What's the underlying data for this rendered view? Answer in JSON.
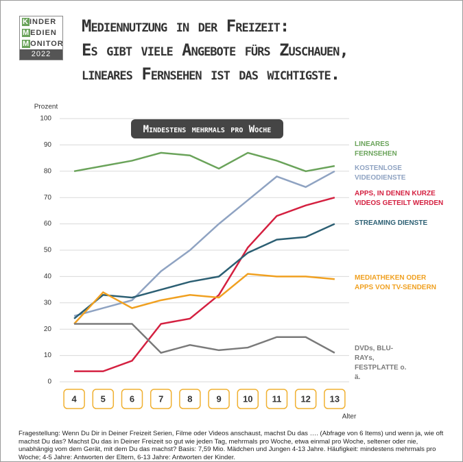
{
  "logo": {
    "line1": "KINDER",
    "line2": "MEDIEN",
    "line3": "MONITOR",
    "year": "2022"
  },
  "chart_data": {
    "type": "line",
    "title": [
      "Mediennutzung in der Freizeit:",
      "Es gibt viele Angebote fürs Zuschauen,",
      "lineares Fernsehen ist das wichtigste."
    ],
    "subtitle": "Mindestens mehrmals pro Woche",
    "y_label": "Prozent",
    "x_label": "Alter",
    "categories": [
      4,
      5,
      6,
      7,
      8,
      9,
      10,
      11,
      12,
      13
    ],
    "ylim": [
      0,
      100
    ],
    "yticks": [
      0,
      10,
      20,
      30,
      40,
      50,
      60,
      70,
      80,
      90,
      100
    ],
    "grid": true,
    "series": [
      {
        "name": "LINEARES FERNSEHEN",
        "color": "#6aa35a",
        "values": [
          80,
          82,
          84,
          87,
          86,
          81,
          87,
          84,
          80,
          82
        ]
      },
      {
        "name": "KOSTENLOSE VIDEODIENSTE",
        "color": "#8fa3c2",
        "values": [
          25,
          28,
          31,
          42,
          50,
          60,
          69,
          78,
          74,
          80
        ]
      },
      {
        "name": "APPS, IN DENEN KURZE VIDEOS GETEILT WERDEN",
        "color": "#d42040",
        "values": [
          4,
          4,
          8,
          22,
          24,
          33,
          51,
          63,
          67,
          70
        ]
      },
      {
        "name": "STREAMING DIENSTE",
        "color": "#2c5f73",
        "values": [
          24,
          33,
          32,
          35,
          38,
          40,
          49,
          54,
          55,
          60
        ]
      },
      {
        "name": "MEDIATHEKEN ODER APPS VON TV-SENDERN",
        "color": "#f0a020",
        "values": [
          22,
          34,
          28,
          31,
          33,
          32,
          41,
          40,
          40,
          39
        ]
      },
      {
        "name": "DVDs, BLU-RAYs, FESTPLATTE o. ä.",
        "color": "#7a7a7a",
        "values": [
          22,
          22,
          22,
          11,
          14,
          12,
          13,
          17,
          17,
          11
        ]
      }
    ],
    "footnote": "Fragestellung: Wenn Du Dir in Deiner Freizeit Serien, Filme oder Videos anschaust, machst Du das …. (Abfrage von 6 Items) und wenn ja, wie oft machst Du das? Machst Du das in Deiner Freizeit so gut wie jeden Tag, mehrmals pro Woche, etwa einmal pro Woche, seltener oder nie, unabhängig vom dem Gerät, mit dem Du das machst? Basis: 7,59 Mio. Mädchen und Jungen 4-13 Jahre. Häufigkeit: mindestens mehrmals pro Woche; 4-5 Jahre: Antworten der Eltern, 6-13 Jahre: Antworten der Kinder."
  }
}
